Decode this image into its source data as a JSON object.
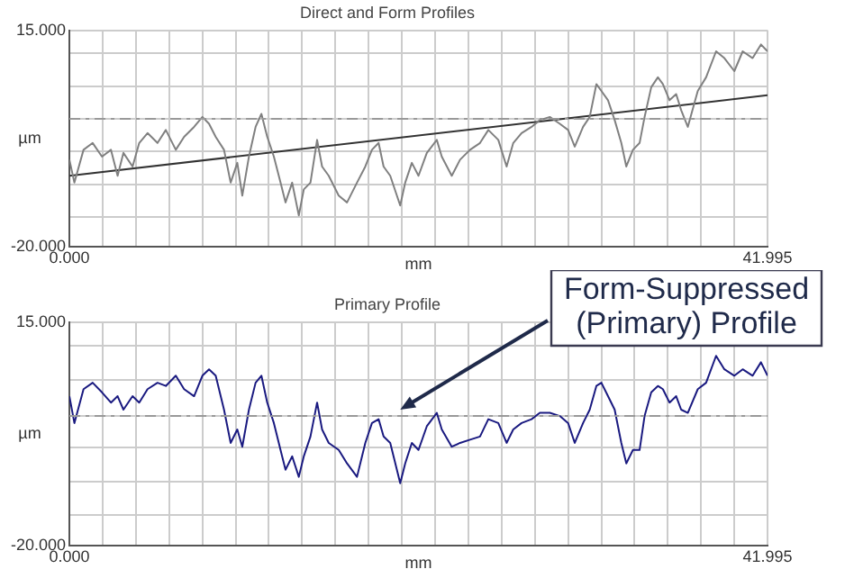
{
  "chart_data": [
    {
      "type": "line",
      "title": "Direct and Form Profiles",
      "xlabel": "mm",
      "ylabel": "µm",
      "xlim": [
        0,
        41.995
      ],
      "ylim": [
        -20,
        15
      ],
      "xticks": [
        {
          "value": 0,
          "label": "0.000"
        },
        {
          "value": 2,
          "label": null
        },
        {
          "value": 4,
          "label": null
        },
        {
          "value": 6,
          "label": null
        },
        {
          "value": 8,
          "label": null
        },
        {
          "value": 10,
          "label": null
        },
        {
          "value": 12,
          "label": null
        },
        {
          "value": 14,
          "label": null
        },
        {
          "value": 16,
          "label": null
        },
        {
          "value": 18,
          "label": null
        },
        {
          "value": 20,
          "label": null
        },
        {
          "value": 22,
          "label": null
        },
        {
          "value": 24,
          "label": null
        },
        {
          "value": 26,
          "label": null
        },
        {
          "value": 28,
          "label": null
        },
        {
          "value": 30,
          "label": null
        },
        {
          "value": 32,
          "label": null
        },
        {
          "value": 34,
          "label": null
        },
        {
          "value": 36,
          "label": null
        },
        {
          "value": 38,
          "label": null
        },
        {
          "value": 40,
          "label": null
        },
        {
          "value": 41.995,
          "label": "41.995"
        }
      ],
      "yticks": [
        {
          "value": -20,
          "label": "-20.000"
        },
        {
          "value": -15.2,
          "label": null
        },
        {
          "value": -9.9,
          "label": null
        },
        {
          "value": -4.6,
          "label": null
        },
        {
          "value": 0.7,
          "label": null
        },
        {
          "value": 6,
          "label": null
        },
        {
          "value": 11.3,
          "label": null
        },
        {
          "value": 15,
          "label": "15.000"
        }
      ],
      "grid": true,
      "legend": false,
      "marker": "none",
      "line_style": "solid",
      "ref_lines": [
        {
          "axis": "y",
          "value": 0.7,
          "color": "#999999",
          "line_style": "dashed"
        }
      ],
      "series": [
        {
          "color": "#808080",
          "x": [
            0,
            0.3,
            0.85,
            1.4,
            1.96,
            2.5,
            2.9,
            3.25,
            3.8,
            4.2,
            4.7,
            5.3,
            5.8,
            6.4,
            6.9,
            7.5,
            8.0,
            8.4,
            8.8,
            9.3,
            9.7,
            10.1,
            10.4,
            10.8,
            11.2,
            11.55,
            11.9,
            12.3,
            12.7,
            13.0,
            13.4,
            13.8,
            14.1,
            14.5,
            14.9,
            15.2,
            15.6,
            16.2,
            16.7,
            17.3,
            17.8,
            18.2,
            18.6,
            18.9,
            19.3,
            19.9,
            20.2,
            20.6,
            21.0,
            21.5,
            22.1,
            22.4,
            23.0,
            23.5,
            24.1,
            24.7,
            25.2,
            25.8,
            26.3,
            26.7,
            27.2,
            27.8,
            28.3,
            28.9,
            29.5,
            30.0,
            30.4,
            30.9,
            31.3,
            31.7,
            32.0,
            32.4,
            32.8,
            33.2,
            33.5,
            33.9,
            34.3,
            34.6,
            35.0,
            35.4,
            35.7,
            36.1,
            36.5,
            36.8,
            37.2,
            37.8,
            38.3,
            38.9,
            39.4,
            40.0,
            40.5,
            41.1,
            41.6,
            41.995
          ],
          "values": [
            -5.9,
            -9.6,
            -4.3,
            -3.2,
            -5.4,
            -4.3,
            -8.5,
            -4.8,
            -7.0,
            -3.2,
            -1.6,
            -3.2,
            -1.1,
            -4.3,
            -2.2,
            -0.6,
            1.0,
            -0.1,
            -2.2,
            -4.3,
            -9.6,
            -6.4,
            -11.7,
            -5.4,
            -0.6,
            1.5,
            -2.2,
            -5.4,
            -9.6,
            -12.8,
            -9.6,
            -14.9,
            -10.7,
            -9.6,
            -2.7,
            -7.0,
            -8.5,
            -11.7,
            -12.8,
            -9.6,
            -7.0,
            -4.3,
            -3.2,
            -7.0,
            -8.5,
            -13.3,
            -9.6,
            -6.4,
            -8.5,
            -4.8,
            -2.7,
            -5.4,
            -8.5,
            -5.9,
            -4.3,
            -3.2,
            -1.1,
            -2.7,
            -7.0,
            -3.2,
            -1.6,
            -0.6,
            0.5,
            1.0,
            -0.1,
            -1.1,
            -3.8,
            -0.6,
            1.0,
            6.3,
            5.2,
            3.7,
            0.5,
            -3.2,
            -7.0,
            -4.3,
            -3.2,
            1.0,
            5.8,
            7.4,
            6.3,
            3.7,
            4.7,
            2.1,
            -0.6,
            5.2,
            7.4,
            11.6,
            10.5,
            8.4,
            11.6,
            10.5,
            12.7,
            11.6
          ]
        },
        {
          "color": "#333333",
          "x": [
            0,
            41.995
          ],
          "values": [
            -8.5,
            4.5
          ]
        }
      ]
    },
    {
      "type": "line",
      "title": "Primary Profile",
      "xlabel": "mm",
      "ylabel": "µm",
      "xlim": [
        0,
        41.995
      ],
      "ylim": [
        -20,
        15
      ],
      "xticks": [
        {
          "value": 0,
          "label": "0.000"
        },
        {
          "value": 2,
          "label": null
        },
        {
          "value": 4,
          "label": null
        },
        {
          "value": 6,
          "label": null
        },
        {
          "value": 8,
          "label": null
        },
        {
          "value": 10,
          "label": null
        },
        {
          "value": 12,
          "label": null
        },
        {
          "value": 14,
          "label": null
        },
        {
          "value": 16,
          "label": null
        },
        {
          "value": 18,
          "label": null
        },
        {
          "value": 20,
          "label": null
        },
        {
          "value": 22,
          "label": null
        },
        {
          "value": 24,
          "label": null
        },
        {
          "value": 26,
          "label": null
        },
        {
          "value": 28,
          "label": null
        },
        {
          "value": 30,
          "label": null
        },
        {
          "value": 32,
          "label": null
        },
        {
          "value": 34,
          "label": null
        },
        {
          "value": 36,
          "label": null
        },
        {
          "value": 38,
          "label": null
        },
        {
          "value": 40,
          "label": null
        },
        {
          "value": 41.995,
          "label": "41.995"
        }
      ],
      "yticks": [
        {
          "value": -20,
          "label": "-20.000"
        },
        {
          "value": -15.2,
          "label": null
        },
        {
          "value": -9.9,
          "label": null
        },
        {
          "value": -4.6,
          "label": null
        },
        {
          "value": 0.3,
          "label": null
        },
        {
          "value": 6,
          "label": null
        },
        {
          "value": 11.3,
          "label": null
        },
        {
          "value": 15,
          "label": "15.000"
        }
      ],
      "grid": true,
      "legend": false,
      "marker": "none",
      "line_style": "solid",
      "ref_lines": [
        {
          "axis": "y",
          "value": 0.3,
          "color": "#999999",
          "line_style": "dashed"
        }
      ],
      "annotations": [
        {
          "text": "Form-Suppressed (Primary) Profile",
          "x": 19.9,
          "y": 1.3
        }
      ],
      "series": [
        {
          "color": "#1a1a80",
          "x": [
            0,
            0.3,
            0.85,
            1.4,
            1.96,
            2.5,
            2.9,
            3.25,
            3.8,
            4.2,
            4.7,
            5.3,
            5.8,
            6.4,
            6.9,
            7.5,
            8.0,
            8.4,
            8.8,
            9.3,
            9.7,
            10.1,
            10.4,
            10.8,
            11.2,
            11.55,
            11.9,
            12.3,
            12.7,
            13.0,
            13.4,
            13.8,
            14.1,
            14.5,
            14.9,
            15.2,
            15.6,
            16.2,
            16.7,
            17.3,
            17.8,
            18.2,
            18.6,
            18.9,
            19.3,
            19.9,
            20.2,
            20.6,
            21.0,
            21.5,
            22.1,
            22.4,
            23.0,
            23.5,
            24.1,
            24.7,
            25.2,
            25.8,
            26.3,
            26.7,
            27.2,
            27.8,
            28.3,
            28.9,
            29.5,
            30.0,
            30.4,
            30.9,
            31.3,
            31.7,
            32.0,
            32.4,
            32.8,
            33.2,
            33.5,
            33.9,
            34.3,
            34.6,
            35.0,
            35.4,
            35.7,
            36.1,
            36.5,
            36.8,
            37.2,
            37.8,
            38.3,
            38.9,
            39.4,
            40.0,
            40.5,
            41.1,
            41.6,
            41.995
          ],
          "values": [
            3.4,
            -0.8,
            4.5,
            5.5,
            4.0,
            2.4,
            3.4,
            1.3,
            3.4,
            2.4,
            4.5,
            5.5,
            5.0,
            6.6,
            4.5,
            3.4,
            6.6,
            7.6,
            6.6,
            1.3,
            -3.9,
            -1.8,
            -4.5,
            1.3,
            5.5,
            6.6,
            2.4,
            -0.8,
            -5.0,
            -8.1,
            -6.0,
            -9.2,
            -6.0,
            -2.9,
            2.4,
            -1.8,
            -3.9,
            -5.0,
            -7.1,
            -9.2,
            -3.9,
            -0.8,
            -0.2,
            -2.9,
            -3.9,
            -10.2,
            -7.1,
            -3.9,
            -5.0,
            -1.3,
            0.8,
            -1.8,
            -4.5,
            -3.9,
            -3.4,
            -2.9,
            -0.2,
            -0.8,
            -3.9,
            -1.8,
            -0.8,
            -0.2,
            0.8,
            0.8,
            0.3,
            -0.8,
            -3.9,
            -0.8,
            1.3,
            5.0,
            5.5,
            3.4,
            1.3,
            -3.9,
            -7.1,
            -5.0,
            -5.0,
            0.3,
            4.0,
            5.0,
            4.5,
            2.4,
            3.4,
            1.3,
            0.8,
            4.5,
            5.5,
            9.7,
            7.6,
            6.6,
            7.6,
            6.6,
            8.7,
            6.6
          ]
        }
      ]
    }
  ]
}
